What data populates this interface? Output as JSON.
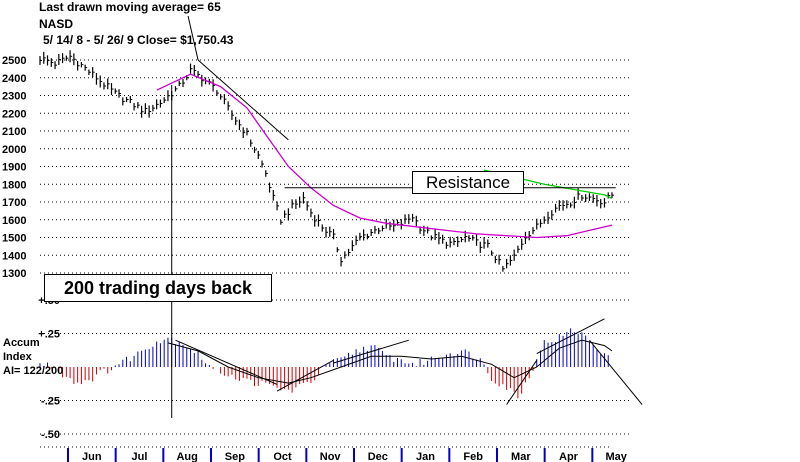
{
  "header": {
    "line1": "Last drawn moving average= 65",
    "line2": "NASD",
    "line3": "5/ 14/ 8 -  5/ 26/ 9   Close= $1,750.43"
  },
  "annotations": {
    "resistance": "Resistance",
    "trading_days": "200 trading days back"
  },
  "accum_labels": [
    "Accum",
    "Index",
    "AI= 122/200"
  ],
  "colors": {
    "price_bars": "#000000",
    "ma_long": "#cc00cc",
    "ma_short": "#00cc00",
    "accum_positive": "#0000cc",
    "accum_negative": "#cc0000",
    "month_ticks": "#0000cc",
    "gridlines": "#000000"
  },
  "chart_data": [
    {
      "type": "bar",
      "subtype": "ohlc-price",
      "series_label": "NASD",
      "ylim": [
        1250,
        2550
      ],
      "yticks": [
        2500,
        2400,
        2300,
        2200,
        2100,
        2000,
        1900,
        1800,
        1700,
        1600,
        1500,
        1400,
        1300
      ],
      "grid": true,
      "x_months": [
        "Jun",
        "Jul",
        "Aug",
        "Sep",
        "Oct",
        "Nov",
        "Dec",
        "Jan",
        "Feb",
        "Mar",
        "Apr",
        "May"
      ],
      "price_path": [
        [
          0,
          2510
        ],
        [
          4,
          2480
        ],
        [
          8,
          2520
        ],
        [
          11,
          2470
        ],
        [
          15,
          2400
        ],
        [
          20,
          2310
        ],
        [
          24,
          2260
        ],
        [
          28,
          2210
        ],
        [
          32,
          2260
        ],
        [
          37,
          2350
        ],
        [
          40,
          2440
        ],
        [
          43,
          2400
        ],
        [
          47,
          2330
        ],
        [
          51,
          2190
        ],
        [
          55,
          2080
        ],
        [
          58,
          1960
        ],
        [
          60,
          1860
        ],
        [
          62,
          1720
        ],
        [
          64,
          1600
        ],
        [
          67,
          1670
        ],
        [
          70,
          1720
        ],
        [
          72,
          1640
        ],
        [
          75,
          1560
        ],
        [
          78,
          1500
        ],
        [
          80,
          1380
        ],
        [
          82,
          1420
        ],
        [
          85,
          1500
        ],
        [
          88,
          1530
        ],
        [
          91,
          1560
        ],
        [
          94,
          1560
        ],
        [
          97,
          1590
        ],
        [
          99,
          1620
        ],
        [
          101,
          1560
        ],
        [
          104,
          1510
        ],
        [
          107,
          1480
        ],
        [
          110,
          1460
        ],
        [
          113,
          1500
        ],
        [
          116,
          1470
        ],
        [
          119,
          1450
        ],
        [
          121,
          1390
        ],
        [
          123,
          1320
        ],
        [
          126,
          1390
        ],
        [
          129,
          1510
        ],
        [
          132,
          1560
        ],
        [
          135,
          1630
        ],
        [
          138,
          1680
        ],
        [
          141,
          1700
        ],
        [
          144,
          1740
        ],
        [
          147,
          1720
        ],
        [
          150,
          1700
        ],
        [
          152,
          1740
        ]
      ],
      "moving_average_long": [
        [
          31,
          2330
        ],
        [
          40,
          2420
        ],
        [
          48,
          2350
        ],
        [
          55,
          2230
        ],
        [
          60,
          2080
        ],
        [
          66,
          1900
        ],
        [
          72,
          1780
        ],
        [
          78,
          1680
        ],
        [
          85,
          1610
        ],
        [
          92,
          1580
        ],
        [
          100,
          1560
        ],
        [
          108,
          1540
        ],
        [
          116,
          1520
        ],
        [
          124,
          1510
        ],
        [
          132,
          1500
        ],
        [
          140,
          1510
        ],
        [
          146,
          1540
        ],
        [
          152,
          1570
        ]
      ],
      "moving_average_short": [
        [
          118,
          1880
        ],
        [
          126,
          1840
        ],
        [
          134,
          1800
        ],
        [
          142,
          1770
        ],
        [
          150,
          1740
        ],
        [
          152,
          1720
        ]
      ],
      "resistance_level": 1780,
      "resistance_x": [
        65,
        153
      ],
      "downtrend_line": [
        [
          42,
          2500
        ],
        [
          66,
          2050
        ]
      ],
      "lookback_marker_x": 35
    },
    {
      "type": "bar",
      "subtype": "accumulation-index",
      "ylim": [
        -0.5,
        0.5
      ],
      "yticks": [
        0.5,
        0.25,
        -0.25,
        -0.5
      ],
      "ytick_labels": [
        "+.50",
        "+.25",
        "-.25",
        "-.50"
      ],
      "grid": true,
      "accum_path": [
        [
          0,
          0.02
        ],
        [
          3,
          0.01
        ],
        [
          6,
          -0.05
        ],
        [
          10,
          -0.12
        ],
        [
          14,
          -0.08
        ],
        [
          18,
          -0.02
        ],
        [
          22,
          0.04
        ],
        [
          26,
          0.1
        ],
        [
          30,
          0.18
        ],
        [
          34,
          0.22
        ],
        [
          38,
          0.18
        ],
        [
          42,
          0.1
        ],
        [
          46,
          -0.02
        ],
        [
          50,
          -0.05
        ],
        [
          54,
          -0.1
        ],
        [
          58,
          -0.12
        ],
        [
          62,
          -0.15
        ],
        [
          66,
          -0.18
        ],
        [
          70,
          -0.14
        ],
        [
          74,
          -0.06
        ],
        [
          76,
          0.02
        ],
        [
          80,
          0.05
        ],
        [
          84,
          0.12
        ],
        [
          88,
          0.16
        ],
        [
          92,
          0.08
        ],
        [
          96,
          0.05
        ],
        [
          100,
          0.02
        ],
        [
          104,
          0.06
        ],
        [
          108,
          0.1
        ],
        [
          112,
          0.12
        ],
        [
          116,
          0.08
        ],
        [
          118,
          0.02
        ],
        [
          120,
          -0.08
        ],
        [
          124,
          -0.15
        ],
        [
          127,
          -0.22
        ],
        [
          130,
          -0.08
        ],
        [
          132,
          0.08
        ],
        [
          134,
          0.18
        ],
        [
          138,
          0.22
        ],
        [
          142,
          0.28
        ],
        [
          146,
          0.2
        ],
        [
          150,
          0.1
        ],
        [
          152,
          0.02
        ]
      ],
      "accum_ma": [
        [
          34,
          0.18
        ],
        [
          42,
          0.12
        ],
        [
          50,
          0.0
        ],
        [
          58,
          -0.08
        ],
        [
          66,
          -0.12
        ],
        [
          72,
          -0.08
        ],
        [
          80,
          0.0
        ],
        [
          88,
          0.08
        ],
        [
          96,
          0.08
        ],
        [
          104,
          0.06
        ],
        [
          112,
          0.08
        ],
        [
          120,
          0.02
        ],
        [
          126,
          -0.08
        ],
        [
          132,
          0.0
        ],
        [
          138,
          0.14
        ],
        [
          144,
          0.2
        ],
        [
          150,
          0.16
        ],
        [
          152,
          0.12
        ]
      ],
      "trendlines": [
        [
          [
            36,
            0.2
          ],
          [
            63,
            -0.13
          ]
        ],
        [
          [
            63,
            -0.18
          ],
          [
            78,
            0.05
          ]
        ],
        [
          [
            78,
            0.03
          ],
          [
            98,
            0.2
          ]
        ],
        [
          [
            124,
            -0.28
          ],
          [
            132,
            0.05
          ]
        ],
        [
          [
            132,
            0.1
          ],
          [
            150,
            0.36
          ]
        ],
        [
          [
            146,
            0.2
          ],
          [
            160,
            -0.28
          ]
        ]
      ]
    }
  ]
}
